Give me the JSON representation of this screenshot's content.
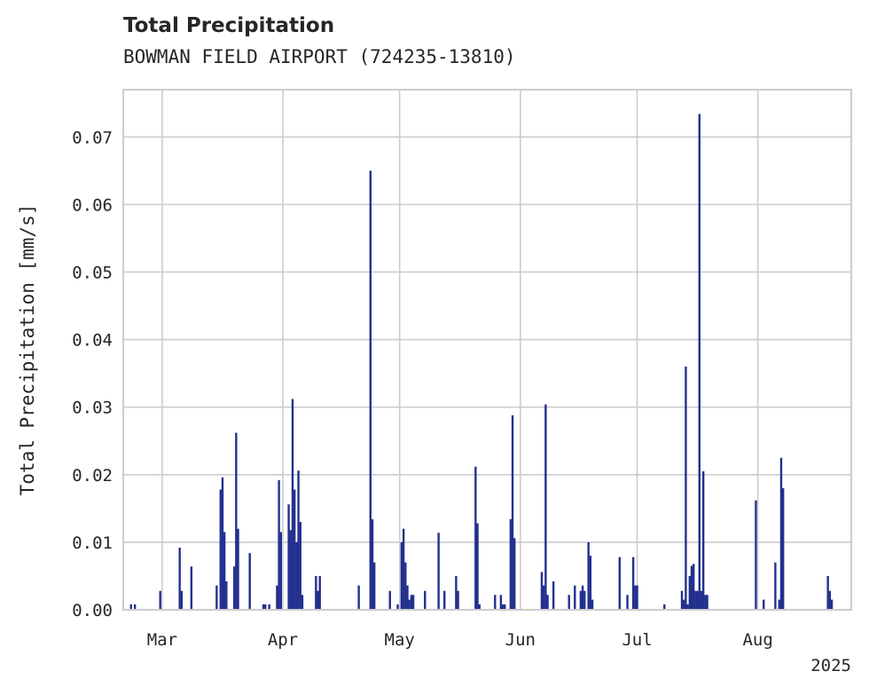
{
  "chart_data": {
    "type": "bar",
    "title": "Total Precipitation",
    "subtitle": "BOWMAN FIELD AIRPORT (724235-13810)",
    "xlabel": "",
    "ylabel": "Total Precipitation [mm/s]",
    "xlim": [
      "2025-02-19",
      "2025-08-25"
    ],
    "ylim": [
      0,
      0.077
    ],
    "yticks": [
      "0.00",
      "0.01",
      "0.02",
      "0.03",
      "0.04",
      "0.05",
      "0.06",
      "0.07"
    ],
    "xticks": [
      {
        "label": "Mar",
        "date": "2025-03-01"
      },
      {
        "label": "Apr",
        "date": "2025-04-01"
      },
      {
        "label": "May",
        "date": "2025-05-01"
      },
      {
        "label": "Jun",
        "date": "2025-06-01"
      },
      {
        "label": "Jul",
        "date": "2025-07-01"
      },
      {
        "label": "Aug",
        "date": "2025-08-01"
      }
    ],
    "year_label": "2025",
    "grid": true,
    "bar_color": "#23308f",
    "series": [
      {
        "x": [
          "2025-02-21T00:00",
          "2025-02-22T00:00",
          "2025-02-28T12:00",
          "2025-03-05T12:00",
          "2025-03-06T00:00",
          "2025-03-08T12:00",
          "2025-03-15T00:00",
          "2025-03-16T00:00",
          "2025-03-16T12:00",
          "2025-03-17T00:00",
          "2025-03-17T12:00",
          "2025-03-19T12:00",
          "2025-03-20T00:00",
          "2025-03-20T12:00",
          "2025-03-23T12:00",
          "2025-03-27T00:00",
          "2025-03-27T12:00",
          "2025-03-28T12:00",
          "2025-03-30T12:00",
          "2025-03-31T00:00",
          "2025-03-31T12:00",
          "2025-04-02T12:00",
          "2025-04-03T00:00",
          "2025-04-03T12:00",
          "2025-04-04T00:00",
          "2025-04-04T12:00",
          "2025-04-05T00:00",
          "2025-04-05T12:00",
          "2025-04-06T00:00",
          "2025-04-09T12:00",
          "2025-04-10T00:00",
          "2025-04-10T12:00",
          "2025-04-20T12:00",
          "2025-04-23T12:00",
          "2025-04-24T00:00",
          "2025-04-24T12:00",
          "2025-04-28T12:00",
          "2025-04-30T12:00",
          "2025-05-01T12:00",
          "2025-05-02T00:00",
          "2025-05-02T12:00",
          "2025-05-03T00:00",
          "2025-05-03T12:00",
          "2025-05-04T00:00",
          "2025-05-04T12:00",
          "2025-05-07T12:00",
          "2025-05-11T00:00",
          "2025-05-12T12:00",
          "2025-05-15T12:00",
          "2025-05-16T00:00",
          "2025-05-20T12:00",
          "2025-05-21T00:00",
          "2025-05-21T12:00",
          "2025-05-25T12:00",
          "2025-05-27T00:00",
          "2025-05-27T12:00",
          "2025-05-28T00:00",
          "2025-05-29T12:00",
          "2025-05-30T00:00",
          "2025-05-30T12:00",
          "2025-06-06T12:00",
          "2025-06-07T00:00",
          "2025-06-07T12:00",
          "2025-06-08T00:00",
          "2025-06-09T12:00",
          "2025-06-13T12:00",
          "2025-06-15T00:00",
          "2025-06-16T12:00",
          "2025-06-17T00:00",
          "2025-06-17T12:00",
          "2025-06-18T12:00",
          "2025-06-19T00:00",
          "2025-06-19T12:00",
          "2025-06-26T12:00",
          "2025-06-28T12:00",
          "2025-06-30T00:00",
          "2025-06-30T12:00",
          "2025-07-01T00:00",
          "2025-07-08T00:00",
          "2025-07-12T12:00",
          "2025-07-13T00:00",
          "2025-07-13T12:00",
          "2025-07-14T00:00",
          "2025-07-14T12:00",
          "2025-07-15T00:00",
          "2025-07-15T12:00",
          "2025-07-16T00:00",
          "2025-07-16T12:00",
          "2025-07-17T00:00",
          "2025-07-17T12:00",
          "2025-07-18T00:00",
          "2025-07-18T12:00",
          "2025-07-19T00:00",
          "2025-07-31T12:00",
          "2025-08-02T12:00",
          "2025-08-05T12:00",
          "2025-08-06T12:00",
          "2025-08-07T00:00",
          "2025-08-07T12:00",
          "2025-08-19T00:00",
          "2025-08-19T12:00",
          "2025-08-20T00:00"
        ],
        "y": [
          0.0008,
          0.0008,
          0.0028,
          0.0092,
          0.0028,
          0.0064,
          0.0036,
          0.0178,
          0.0196,
          0.0115,
          0.0042,
          0.0064,
          0.0262,
          0.012,
          0.0084,
          0.0008,
          0.0008,
          0.0008,
          0.0036,
          0.0192,
          0.0115,
          0.0156,
          0.0118,
          0.0312,
          0.0178,
          0.01,
          0.0206,
          0.013,
          0.0022,
          0.005,
          0.0028,
          0.005,
          0.0036,
          0.065,
          0.0134,
          0.007,
          0.0028,
          0.0008,
          0.01,
          0.012,
          0.007,
          0.0036,
          0.0015,
          0.0022,
          0.0022,
          0.0028,
          0.0114,
          0.0028,
          0.005,
          0.0028,
          0.0212,
          0.0128,
          0.0008,
          0.0022,
          0.0022,
          0.0008,
          0.0008,
          0.0134,
          0.0288,
          0.0106,
          0.0056,
          0.0036,
          0.0304,
          0.0022,
          0.0042,
          0.0022,
          0.0036,
          0.0028,
          0.0036,
          0.0028,
          0.01,
          0.008,
          0.0015,
          0.0078,
          0.0022,
          0.0078,
          0.0036,
          0.0036,
          0.0008,
          0.0028,
          0.0015,
          0.036,
          0.0008,
          0.005,
          0.0065,
          0.0068,
          0.0028,
          0.0028,
          0.0734,
          0.0028,
          0.0205,
          0.0022,
          0.0022,
          0.0162,
          0.0015,
          0.007,
          0.0015,
          0.0225,
          0.018,
          0.005,
          0.0028,
          0.0015
        ]
      }
    ]
  }
}
